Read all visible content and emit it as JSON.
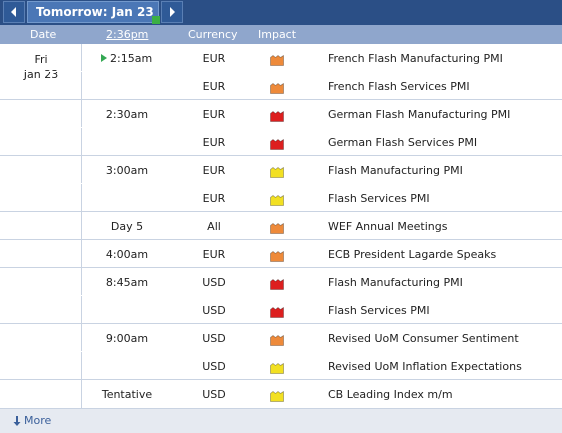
{
  "nav": {
    "day_label": "Tomorrow: Jan 23",
    "prev_icon": "chevron-left-icon",
    "next_icon": "chevron-right-icon"
  },
  "columns": {
    "date": "Date",
    "time": "2:36pm",
    "currency": "Currency",
    "impact": "Impact"
  },
  "date": {
    "day": "Fri",
    "date": "Jan 23"
  },
  "impact_colors": {
    "orange": "#ee8a3a",
    "red": "#dd1f1f",
    "yellow": "#f2e022"
  },
  "events": [
    {
      "time": "2:15am",
      "currency": "EUR",
      "impact": "orange",
      "event": "French Flash Manufacturing PMI",
      "current": true
    },
    {
      "time": "",
      "currency": "EUR",
      "impact": "orange",
      "event": "French Flash Services PMI"
    },
    {
      "time": "2:30am",
      "currency": "EUR",
      "impact": "red",
      "event": "German Flash Manufacturing PMI"
    },
    {
      "time": "",
      "currency": "EUR",
      "impact": "red",
      "event": "German Flash Services PMI"
    },
    {
      "time": "3:00am",
      "currency": "EUR",
      "impact": "yellow",
      "event": "Flash Manufacturing PMI"
    },
    {
      "time": "",
      "currency": "EUR",
      "impact": "yellow",
      "event": "Flash Services PMI"
    },
    {
      "time": "Day 5",
      "currency": "All",
      "impact": "orange",
      "event": "WEF Annual Meetings"
    },
    {
      "time": "4:00am",
      "currency": "EUR",
      "impact": "orange",
      "event": "ECB President Lagarde Speaks"
    },
    {
      "time": "8:45am",
      "currency": "USD",
      "impact": "red",
      "event": "Flash Manufacturing PMI"
    },
    {
      "time": "",
      "currency": "USD",
      "impact": "red",
      "event": "Flash Services PMI"
    },
    {
      "time": "9:00am",
      "currency": "USD",
      "impact": "orange",
      "event": "Revised UoM Consumer Sentiment"
    },
    {
      "time": "",
      "currency": "USD",
      "impact": "yellow",
      "event": "Revised UoM Inflation Expectations"
    },
    {
      "time": "Tentative",
      "currency": "USD",
      "impact": "yellow",
      "event": "CB Leading Index m/m"
    }
  ],
  "footer": {
    "more_label": "More",
    "more_icon": "arrow-down-icon"
  }
}
